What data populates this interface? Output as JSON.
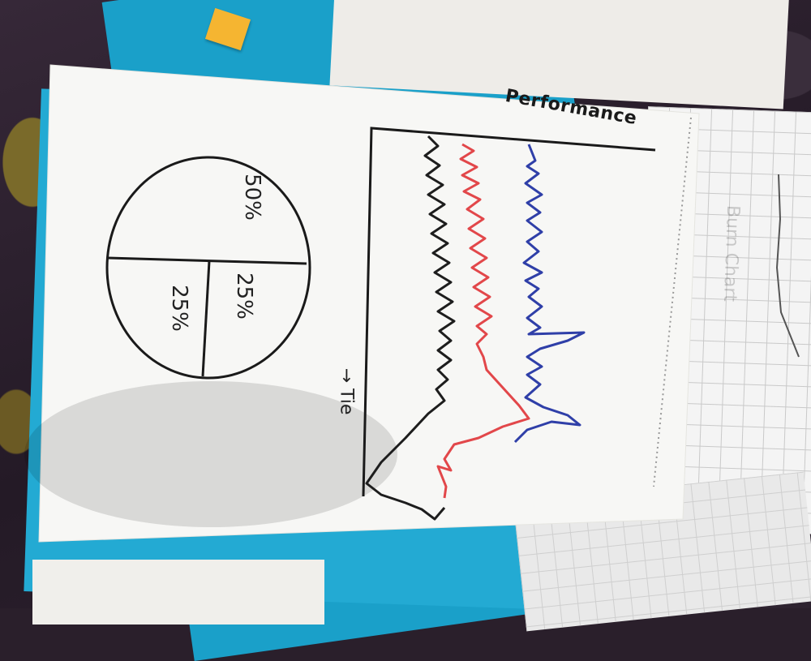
{
  "scene": {
    "description_tags": [
      "hand-drawn sketch",
      "paper",
      "desk"
    ],
    "colors": {
      "paper": "#f7f7f5",
      "ink": "#1a1a1a",
      "blue_line": "#2f3fa8",
      "red_line": "#e2474a",
      "black_line": "#1d1d1d",
      "folder": "#1aa0c9",
      "sticky": "#f5b531"
    }
  },
  "sketch": {
    "chart_title": "Performance",
    "time_axis_label": "→ Tie",
    "pie_labels": [
      "50%",
      "25%",
      "25%"
    ]
  },
  "background_sheet": {
    "faint_text": "Burn Chart"
  }
}
